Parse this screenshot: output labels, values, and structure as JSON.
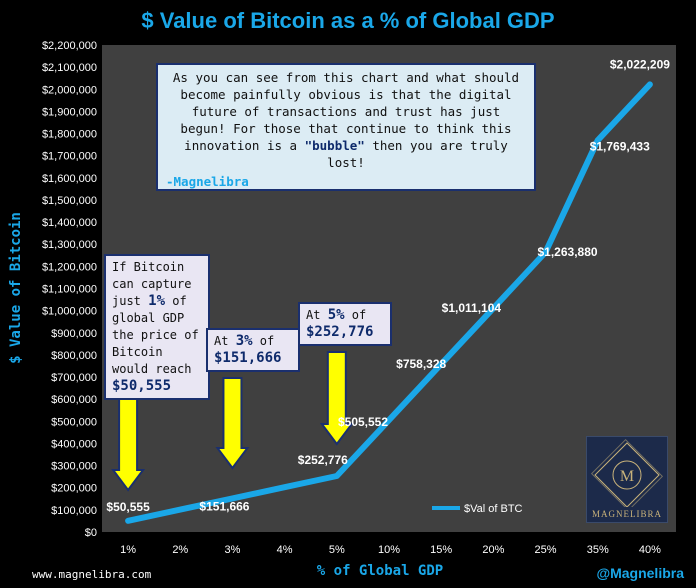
{
  "chart_data": {
    "type": "line",
    "title": "$ Value of Bitcoin as a % of Global GDP",
    "xlabel": "% of Global GDP",
    "ylabel": "$ Value of Bitcoin",
    "categories": [
      "1%",
      "2%",
      "3%",
      "4%",
      "5%",
      "10%",
      "15%",
      "20%",
      "25%",
      "35%",
      "40%"
    ],
    "series": [
      {
        "name": "$Val of BTC",
        "color": "#1aa7e8",
        "values": [
          50555,
          101110,
          151666,
          202221,
          252776,
          505552,
          758328,
          1011104,
          1263880,
          1769433,
          2022209
        ]
      }
    ],
    "data_labels": [
      {
        "index": 0,
        "text": "$50,555"
      },
      {
        "index": 2,
        "text": "$151,666"
      },
      {
        "index": 4,
        "text": "$252,776"
      },
      {
        "index": 5,
        "text": "$505,552"
      },
      {
        "index": 6,
        "text": "$758,328"
      },
      {
        "index": 7,
        "text": "$1,011,104"
      },
      {
        "index": 8,
        "text": "$1,263,880"
      },
      {
        "index": 9,
        "text": "$1,769,433"
      },
      {
        "index": 10,
        "text": "$2,022,209"
      }
    ],
    "ylim": [
      0,
      2200000
    ],
    "ytick_step": 100000,
    "yticks": [
      "$0",
      "$100,000",
      "$200,000",
      "$300,000",
      "$400,000",
      "$500,000",
      "$600,000",
      "$700,000",
      "$800,000",
      "$900,000",
      "$1,000,000",
      "$1,100,000",
      "$1,200,000",
      "$1,300,000",
      "$1,400,000",
      "$1,500,000",
      "$1,600,000",
      "$1,700,000",
      "$1,800,000",
      "$1,900,000",
      "$2,000,000",
      "$2,100,000",
      "$2,200,000"
    ],
    "grid": false,
    "legend": "bottom-right",
    "plot_background": "#404040"
  },
  "quote": {
    "text": "As you can see from this chart and what should become painfully obvious is that the digital future of transactions and trust has just begun! For those that continue to think this innovation is a",
    "highlight": "\"bubble\"",
    "text_end": "then you are truly lost!",
    "signature": "-Magnelibra"
  },
  "callouts": [
    {
      "text": "If Bitcoin can capture just",
      "pct": "1%",
      "text2": "of global GDP the price of Bitcoin would reach",
      "value": "$50,555"
    },
    {
      "text": "At",
      "pct": "3%",
      "text2": "of",
      "value": "$151,666"
    },
    {
      "text": "At",
      "pct": "5%",
      "text2": "of",
      "value": "$252,776"
    }
  ],
  "footer": {
    "website": "www.magnelibra.com",
    "handle": "@Magnelibra"
  },
  "logo": {
    "monogram": "M",
    "text": "MAGNELIBRA"
  },
  "colors": {
    "accent": "#1aa7e8",
    "arrow": "#ffff00",
    "callout_border": "#1a2f6e"
  }
}
